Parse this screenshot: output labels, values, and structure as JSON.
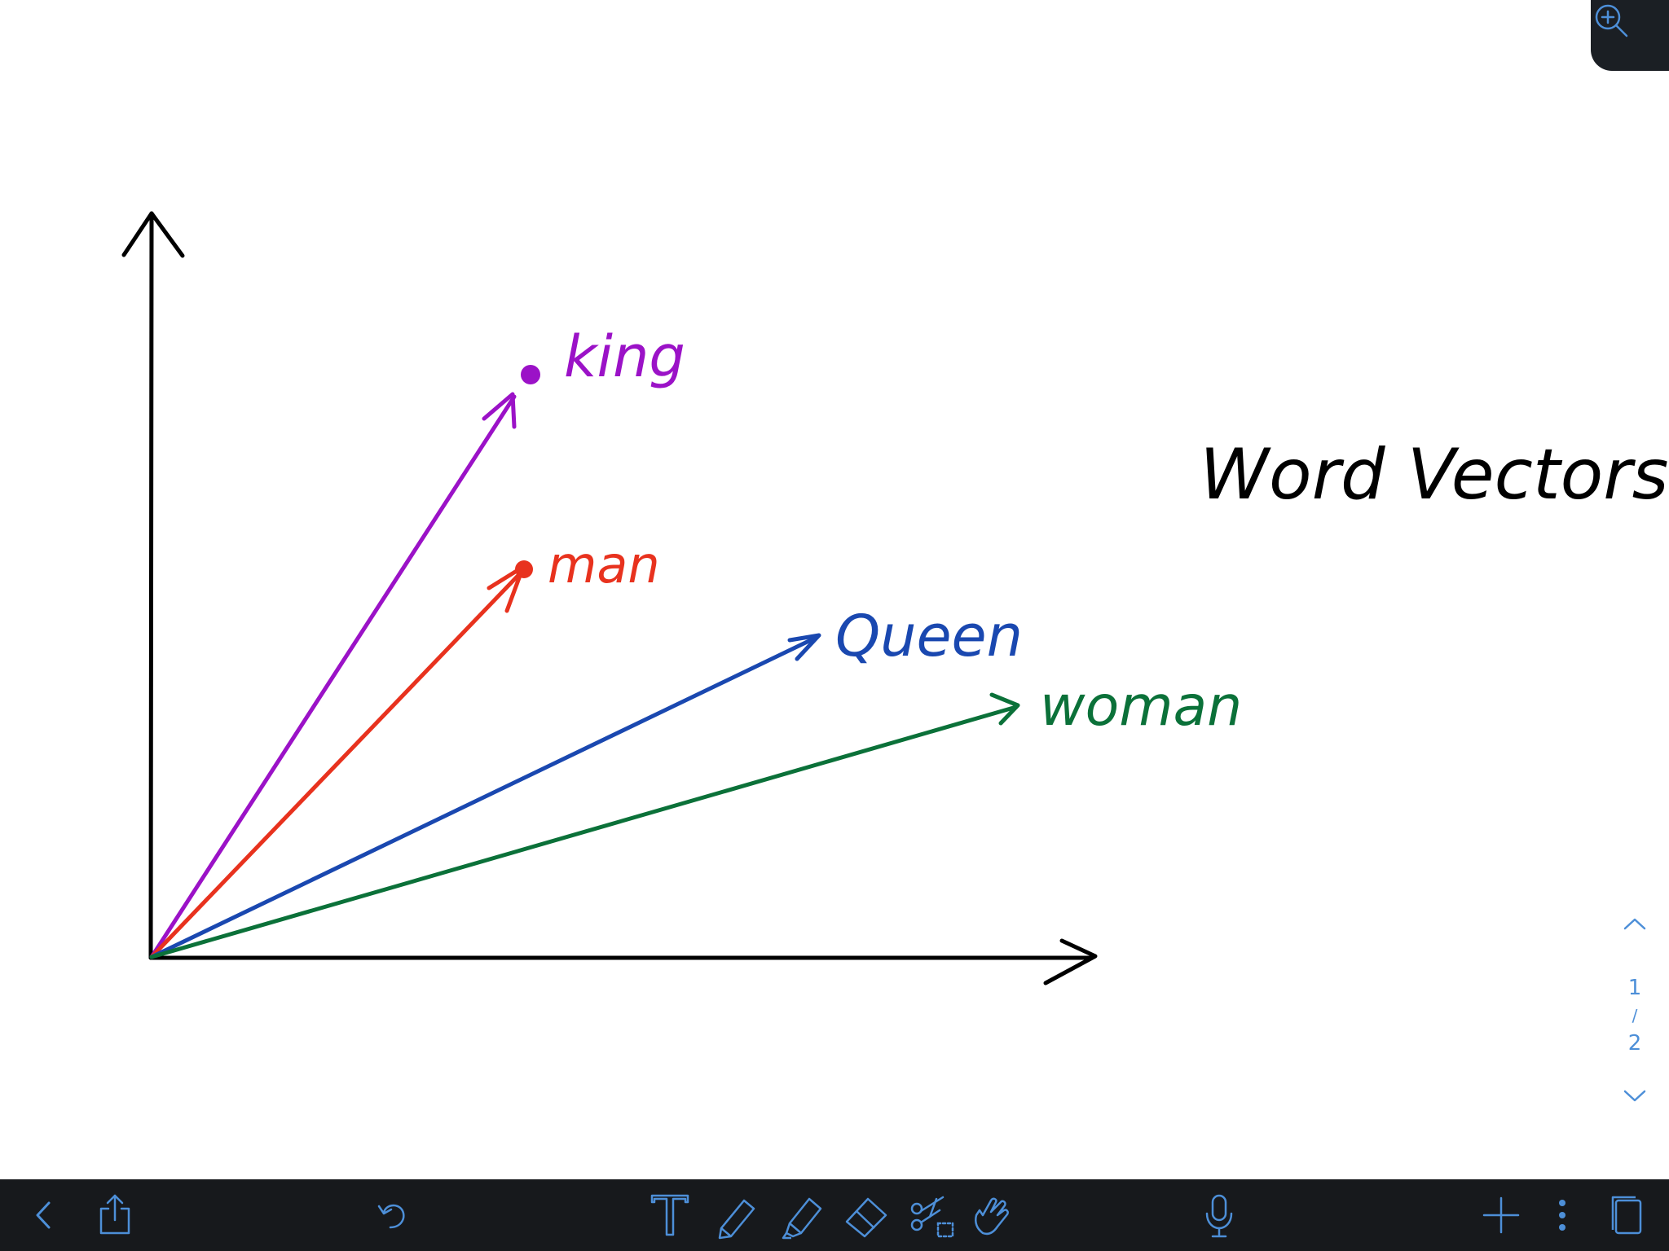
{
  "canvas": {
    "title": "Word Vectors",
    "words": [
      {
        "label": "king",
        "color": "#9b12c7"
      },
      {
        "label": "man",
        "color": "#e8321e"
      },
      {
        "label": "Queen",
        "color": "#1a48b0"
      },
      {
        "label": "woman",
        "color": "#0b7139"
      }
    ],
    "axis_color": "#000000"
  },
  "pager": {
    "current": "1",
    "separator": "/",
    "total": "2"
  },
  "colors": {
    "toolbar_bg": "#17191c",
    "icon": "#4d8fd8",
    "zoom_bg": "#1b1f24"
  },
  "icons": {
    "zoom": "zoom-in-icon",
    "back": "chevron-left-icon",
    "share": "share-icon",
    "undo": "undo-icon",
    "text": "text-tool-icon",
    "pen": "pen-icon",
    "highlighter": "highlighter-icon",
    "eraser": "eraser-icon",
    "lasso": "scissors-lasso-icon",
    "hand": "hand-pointer-icon",
    "mic": "microphone-icon",
    "add": "plus-icon",
    "more": "more-vertical-icon",
    "pages": "pages-icon"
  }
}
